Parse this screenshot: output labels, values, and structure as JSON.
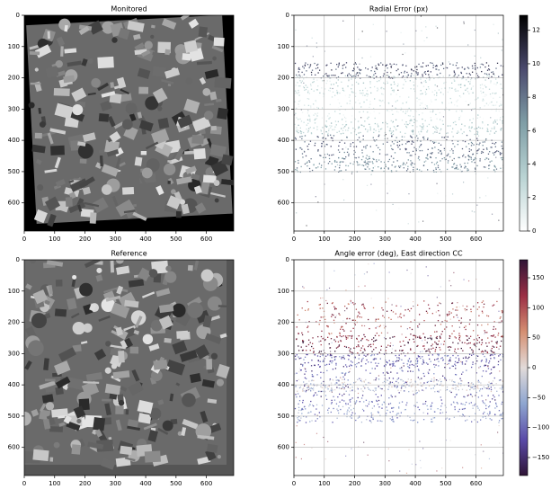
{
  "chart_data": [
    {
      "type": "image",
      "title": "Monitored",
      "xlim": [
        0,
        690
      ],
      "ylim": [
        690,
        0
      ],
      "xticks": [
        0,
        100,
        200,
        300,
        400,
        500,
        600
      ],
      "yticks": [
        0,
        100,
        200,
        300,
        400,
        500,
        600
      ]
    },
    {
      "type": "scatter-map",
      "title": "Radial Error (px)",
      "xlim": [
        0,
        690
      ],
      "ylim": [
        690,
        0
      ],
      "xticks": [
        0,
        100,
        200,
        300,
        400,
        500,
        600
      ],
      "yticks": [
        0,
        100,
        200,
        300,
        400,
        500,
        600
      ],
      "grid": true,
      "colorbar": {
        "lim": [
          0,
          12.9
        ],
        "ticks": [
          0,
          2,
          4,
          6,
          8,
          10,
          12
        ],
        "colormap": [
          "#ffffff",
          "#b9d3d3",
          "#7f9ea6",
          "#4b4a6e",
          "#000000"
        ]
      }
    },
    {
      "type": "image",
      "title": "Reference",
      "xlim": [
        0,
        690
      ],
      "ylim": [
        690,
        0
      ],
      "xticks": [
        0,
        100,
        200,
        300,
        400,
        500,
        600
      ],
      "yticks": [
        0,
        100,
        200,
        300,
        400,
        500,
        600
      ]
    },
    {
      "type": "scatter-map",
      "title": "Angle error (deg), East direction CC",
      "xlim": [
        0,
        690
      ],
      "ylim": [
        690,
        0
      ],
      "xticks": [
        0,
        100,
        200,
        300,
        400,
        500,
        600
      ],
      "yticks": [
        0,
        100,
        200,
        300,
        400,
        500,
        600
      ],
      "grid": true,
      "colorbar": {
        "lim": [
          -180,
          180
        ],
        "ticks": [
          {
            "value": -150,
            "label": "−150"
          },
          {
            "value": -100,
            "label": "−100"
          },
          {
            "value": -50,
            "label": "−50"
          },
          0,
          50,
          100,
          150
        ],
        "colormap": [
          "#2f1436",
          "#5a4ba8",
          "#8ea6d0",
          "#e2dbd9",
          "#d58f72",
          "#9b2f45",
          "#2f1436"
        ]
      }
    }
  ]
}
